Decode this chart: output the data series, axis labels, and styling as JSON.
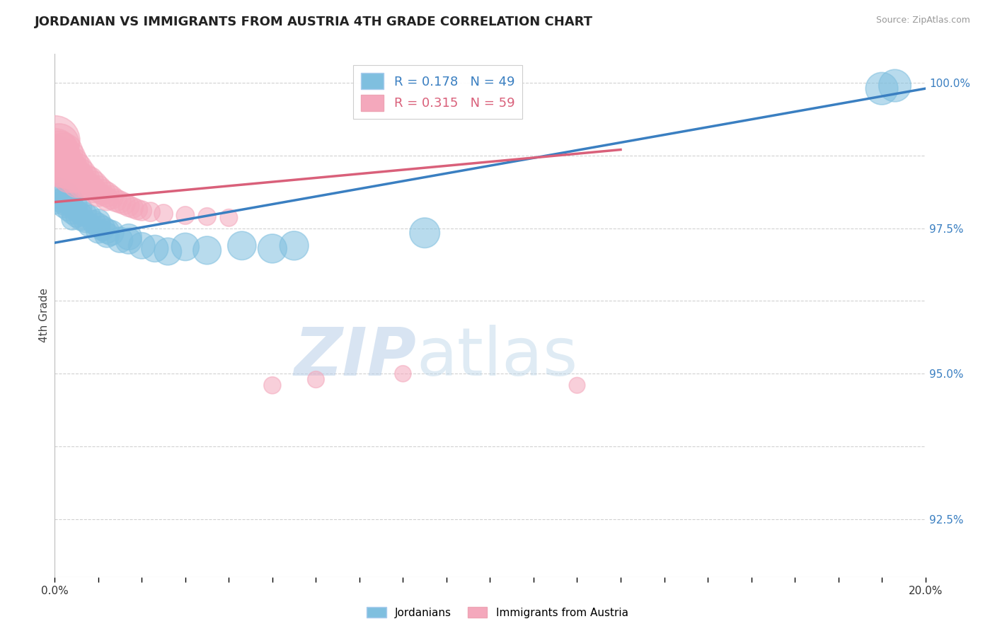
{
  "title": "JORDANIAN VS IMMIGRANTS FROM AUSTRIA 4TH GRADE CORRELATION CHART",
  "source": "Source: ZipAtlas.com",
  "ylabel": "4th Grade",
  "xlim": [
    0.0,
    0.2
  ],
  "ylim": [
    0.915,
    1.005
  ],
  "blue_R": 0.178,
  "blue_N": 49,
  "pink_R": 0.315,
  "pink_N": 59,
  "blue_color": "#7fbfdf",
  "pink_color": "#f4a8bc",
  "blue_line_color": "#3a7fc1",
  "pink_line_color": "#d9607a",
  "watermark_zip": "ZIP",
  "watermark_atlas": "atlas",
  "ytick_vals": [
    0.925,
    0.9375,
    0.95,
    0.9625,
    0.975,
    0.9875,
    1.0
  ],
  "ytick_labels_right": [
    "92.5%",
    "",
    "95.0%",
    "",
    "97.5%",
    "",
    "100.0%"
  ],
  "blue_scatter": [
    [
      0.0,
      0.979
    ],
    [
      0.001,
      0.982
    ],
    [
      0.001,
      0.98
    ],
    [
      0.001,
      0.9795
    ],
    [
      0.002,
      0.9815
    ],
    [
      0.002,
      0.9805
    ],
    [
      0.002,
      0.98
    ],
    [
      0.002,
      0.979
    ],
    [
      0.002,
      0.9785
    ],
    [
      0.003,
      0.981
    ],
    [
      0.003,
      0.98
    ],
    [
      0.003,
      0.979
    ],
    [
      0.003,
      0.978
    ],
    [
      0.004,
      0.98
    ],
    [
      0.004,
      0.979
    ],
    [
      0.004,
      0.9775
    ],
    [
      0.004,
      0.9765
    ],
    [
      0.005,
      0.979
    ],
    [
      0.005,
      0.978
    ],
    [
      0.005,
      0.977
    ],
    [
      0.006,
      0.9785
    ],
    [
      0.006,
      0.9775
    ],
    [
      0.006,
      0.9765
    ],
    [
      0.007,
      0.9775
    ],
    [
      0.007,
      0.9762
    ],
    [
      0.008,
      0.977
    ],
    [
      0.008,
      0.9755
    ],
    [
      0.009,
      0.976
    ],
    [
      0.01,
      0.9755
    ],
    [
      0.01,
      0.9745
    ],
    [
      0.01,
      0.9762
    ],
    [
      0.011,
      0.975
    ],
    [
      0.012,
      0.9745
    ],
    [
      0.012,
      0.9738
    ],
    [
      0.013,
      0.9742
    ],
    [
      0.015,
      0.973
    ],
    [
      0.017,
      0.9728
    ],
    [
      0.017,
      0.9735
    ],
    [
      0.02,
      0.972
    ],
    [
      0.023,
      0.9715
    ],
    [
      0.026,
      0.971
    ],
    [
      0.03,
      0.9718
    ],
    [
      0.035,
      0.9712
    ],
    [
      0.043,
      0.972
    ],
    [
      0.05,
      0.9715
    ],
    [
      0.055,
      0.972
    ],
    [
      0.085,
      0.9742
    ],
    [
      0.19,
      0.999
    ],
    [
      0.193,
      0.9995
    ]
  ],
  "blue_scatter_sizes": [
    30,
    32,
    32,
    32,
    34,
    34,
    34,
    34,
    34,
    36,
    36,
    36,
    36,
    38,
    38,
    38,
    38,
    40,
    40,
    40,
    42,
    42,
    42,
    44,
    44,
    46,
    46,
    48,
    50,
    50,
    50,
    52,
    52,
    52,
    54,
    56,
    58,
    58,
    60,
    62,
    64,
    66,
    68,
    70,
    72,
    72,
    78,
    90,
    90
  ],
  "pink_scatter": [
    [
      0.0,
      0.99
    ],
    [
      0.0,
      0.988
    ],
    [
      0.0,
      0.987
    ],
    [
      0.0,
      0.986
    ],
    [
      0.001,
      0.9895
    ],
    [
      0.001,
      0.9885
    ],
    [
      0.001,
      0.9875
    ],
    [
      0.001,
      0.9865
    ],
    [
      0.001,
      0.9855
    ],
    [
      0.001,
      0.9845
    ],
    [
      0.002,
      0.988
    ],
    [
      0.002,
      0.987
    ],
    [
      0.002,
      0.9862
    ],
    [
      0.002,
      0.9855
    ],
    [
      0.002,
      0.9845
    ],
    [
      0.003,
      0.987
    ],
    [
      0.003,
      0.986
    ],
    [
      0.003,
      0.9852
    ],
    [
      0.003,
      0.9843
    ],
    [
      0.003,
      0.9835
    ],
    [
      0.004,
      0.986
    ],
    [
      0.004,
      0.9852
    ],
    [
      0.004,
      0.9843
    ],
    [
      0.004,
      0.9835
    ],
    [
      0.005,
      0.9852
    ],
    [
      0.005,
      0.9843
    ],
    [
      0.005,
      0.9835
    ],
    [
      0.005,
      0.9825
    ],
    [
      0.006,
      0.9843
    ],
    [
      0.006,
      0.9835
    ],
    [
      0.006,
      0.9825
    ],
    [
      0.007,
      0.9835
    ],
    [
      0.007,
      0.9825
    ],
    [
      0.008,
      0.9832
    ],
    [
      0.008,
      0.9822
    ],
    [
      0.009,
      0.9825
    ],
    [
      0.009,
      0.9815
    ],
    [
      0.01,
      0.9818
    ],
    [
      0.01,
      0.9808
    ],
    [
      0.011,
      0.9812
    ],
    [
      0.012,
      0.9808
    ],
    [
      0.012,
      0.98
    ],
    [
      0.013,
      0.9803
    ],
    [
      0.014,
      0.9798
    ],
    [
      0.015,
      0.9795
    ],
    [
      0.016,
      0.9792
    ],
    [
      0.017,
      0.9788
    ],
    [
      0.018,
      0.9785
    ],
    [
      0.019,
      0.9782
    ],
    [
      0.02,
      0.978
    ],
    [
      0.022,
      0.9778
    ],
    [
      0.025,
      0.9775
    ],
    [
      0.03,
      0.9772
    ],
    [
      0.035,
      0.977
    ],
    [
      0.04,
      0.9768
    ],
    [
      0.05,
      0.948
    ],
    [
      0.06,
      0.949
    ],
    [
      0.08,
      0.95
    ],
    [
      0.12,
      0.948
    ]
  ],
  "pink_scatter_sizes": [
    220,
    200,
    180,
    160,
    140,
    120,
    100,
    90,
    80,
    70,
    130,
    110,
    95,
    85,
    75,
    110,
    95,
    85,
    75,
    65,
    95,
    85,
    75,
    65,
    85,
    75,
    65,
    58,
    78,
    68,
    58,
    70,
    60,
    65,
    55,
    62,
    52,
    58,
    50,
    55,
    52,
    45,
    48,
    44,
    42,
    40,
    38,
    36,
    35,
    34,
    32,
    30,
    28,
    27,
    26,
    25,
    24,
    23,
    22
  ]
}
